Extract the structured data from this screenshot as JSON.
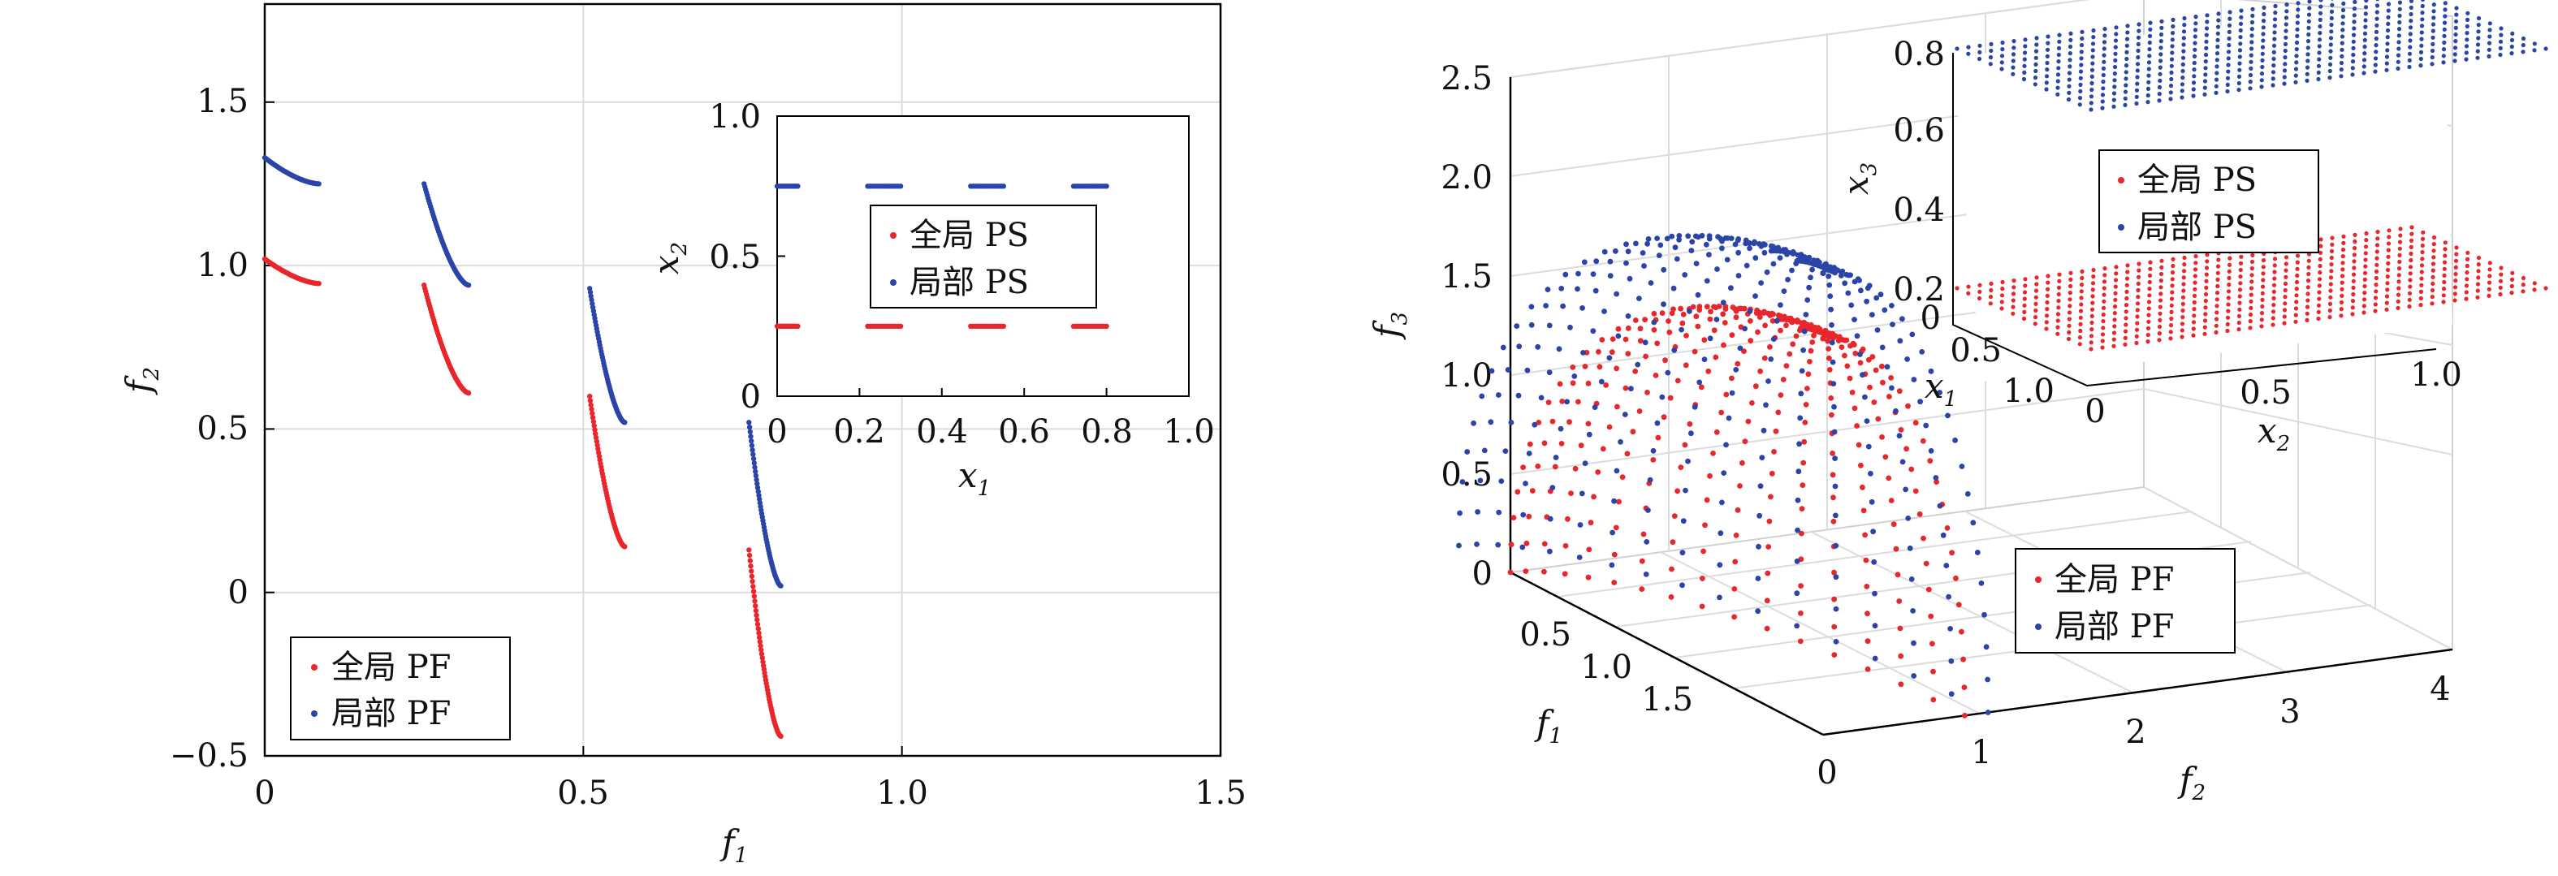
{
  "chart_data": [
    {
      "id": "left",
      "type": "scatter",
      "xlabel": "f",
      "xlabel_sub": "1",
      "ylabel": "f",
      "ylabel_sub": "2",
      "xlim": [
        0,
        1.5
      ],
      "ylim": [
        -0.5,
        1.8
      ],
      "xticks": [
        "0",
        "0.5",
        "1.0",
        "1.5"
      ],
      "yticks": [
        "−0.5",
        "0",
        "0.5",
        "1.0",
        "1.5"
      ],
      "grid": true,
      "legend": {
        "placement": "bottom-left",
        "entries": [
          "全局 PF",
          "局部 PF"
        ]
      },
      "series": [
        {
          "name": "全局 PF",
          "color": "#e8262b",
          "segments": [
            {
              "x": [
                0.0,
                0.085
              ],
              "y": [
                1.02,
                0.945
              ]
            },
            {
              "x": [
                0.25,
                0.32
              ],
              "y": [
                0.94,
                0.61
              ]
            },
            {
              "x": [
                0.51,
                0.565
              ],
              "y": [
                0.6,
                0.14
              ]
            },
            {
              "x": [
                0.76,
                0.81
              ],
              "y": [
                0.13,
                -0.44
              ]
            }
          ]
        },
        {
          "name": "局部 PF",
          "color": "#2a44a8",
          "segments": [
            {
              "x": [
                0.0,
                0.085
              ],
              "y": [
                1.33,
                1.25
              ]
            },
            {
              "x": [
                0.25,
                0.32
              ],
              "y": [
                1.25,
                0.94
              ]
            },
            {
              "x": [
                0.51,
                0.565
              ],
              "y": [
                0.93,
                0.52
              ]
            },
            {
              "x": [
                0.76,
                0.81
              ],
              "y": [
                0.52,
                0.02
              ]
            }
          ]
        }
      ],
      "inset": {
        "type": "scatter",
        "xlabel": "x",
        "xlabel_sub": "1",
        "ylabel": "x",
        "ylabel_sub": "2",
        "xlim": [
          0,
          1
        ],
        "ylim": [
          0,
          1
        ],
        "xticks": [
          "0",
          "0.2",
          "0.4",
          "0.6",
          "0.8",
          "1.0"
        ],
        "yticks": [
          "0",
          "0.5",
          "1.0"
        ],
        "legend": {
          "placement": "center",
          "entries": [
            "全局 PS",
            "局部 PS"
          ]
        },
        "series": [
          {
            "name": "全局 PS",
            "color": "#e8262b",
            "y": 0.25,
            "x_ranges": [
              [
                0,
                0.05
              ],
              [
                0.22,
                0.3
              ],
              [
                0.47,
                0.55
              ],
              [
                0.72,
                0.8
              ]
            ]
          },
          {
            "name": "局部 PS",
            "color": "#2a44a8",
            "y": 0.75,
            "x_ranges": [
              [
                0,
                0.05
              ],
              [
                0.22,
                0.3
              ],
              [
                0.47,
                0.55
              ],
              [
                0.72,
                0.8
              ]
            ]
          }
        ]
      }
    },
    {
      "id": "right",
      "type": "scatter",
      "xlabel": "f",
      "xlabel_sub": "1",
      "ylabel": "f",
      "ylabel_sub": "2",
      "zlabel": "f",
      "zlabel_sub": "3",
      "f1_ticks": [
        "0.5",
        "1.0",
        "1.5"
      ],
      "f2_ticks": [
        "0",
        "1",
        "2",
        "3",
        "4"
      ],
      "f3_ticks": [
        "0",
        "0.5",
        "1.0",
        "1.5",
        "2.0",
        "2.5"
      ],
      "zlim": [
        0,
        2.5
      ],
      "grid": true,
      "legend": {
        "placement": "bottom-right",
        "entries": [
          "全局 PF",
          "局部 PF"
        ]
      },
      "series": [
        {
          "name": "全局 PF",
          "color": "#e8262b",
          "radius": 2.0
        },
        {
          "name": "局部 PF",
          "color": "#2a44a8",
          "radius": 2.33
        }
      ],
      "inset": {
        "xlabel": "x",
        "xlabel_sub": "1",
        "ylabel": "x",
        "ylabel_sub": "2",
        "zlabel": "x",
        "zlabel_sub": "3",
        "x1_ticks": [
          "0",
          "0.5",
          "1.0"
        ],
        "x2_ticks": [
          "0",
          "0.5",
          "1.0"
        ],
        "x3_ticks": [
          "0.2",
          "0.4",
          "0.6",
          "0.8"
        ],
        "legend": {
          "placement": "center",
          "entries": [
            "全局 PS",
            "局部 PS"
          ]
        },
        "series": [
          {
            "name": "全局 PS",
            "color": "#e8262b",
            "x3": 0.25
          },
          {
            "name": "局部 PS",
            "color": "#2a44a8",
            "x3": 0.75
          }
        ]
      }
    }
  ]
}
